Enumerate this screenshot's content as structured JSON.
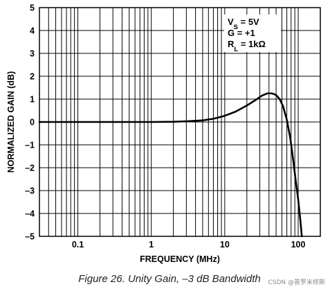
{
  "chart_data": {
    "type": "line",
    "xlabel": "FREQUENCY (MHz)",
    "ylabel": "NORMALIZED GAIN (dB)",
    "xscale": "log",
    "xlim": [
      0.03,
      200
    ],
    "ylim": [
      -5,
      5
    ],
    "x_ticks": [
      0.1,
      1,
      10,
      100
    ],
    "x_tick_labels": [
      "0.1",
      "1",
      "10",
      "100"
    ],
    "y_ticks": [
      5,
      4,
      3,
      2,
      1,
      0,
      -1,
      -2,
      -3,
      -4,
      -5
    ],
    "y_tick_labels": [
      "5",
      "4",
      "3",
      "2",
      "1",
      "0",
      "–1",
      "–2",
      "–3",
      "–4",
      "–5"
    ],
    "grid": true,
    "annotations": [
      {
        "text": "V",
        "sub": "S",
        "rest": " = 5V"
      },
      {
        "text": "G = +1",
        "sub": "",
        "rest": ""
      },
      {
        "text": "R",
        "sub": "L",
        "rest": " = 1kΩ"
      }
    ],
    "series": [
      {
        "x": [
          0.03,
          0.1,
          0.3,
          1,
          2,
          3,
          5,
          7,
          10,
          14,
          20,
          26,
          32,
          38,
          44,
          50,
          56,
          62,
          70,
          78,
          85,
          92,
          100,
          107,
          112
        ],
        "y": [
          0,
          0,
          0,
          0,
          0.01,
          0.03,
          0.07,
          0.14,
          0.27,
          0.45,
          0.72,
          0.95,
          1.15,
          1.25,
          1.25,
          1.18,
          1.0,
          0.7,
          0.1,
          -0.7,
          -1.6,
          -2.5,
          -3.4,
          -4.3,
          -5.0
        ]
      }
    ]
  },
  "caption": "Figure 26. Unity Gain, –3 dB Bandwidth",
  "watermark": "CSDN @普罗米修斯"
}
